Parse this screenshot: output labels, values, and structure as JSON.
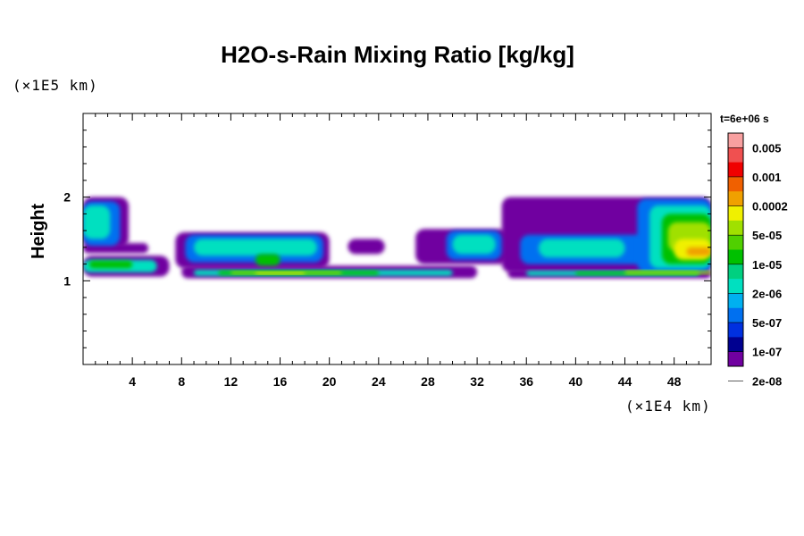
{
  "chart_data": {
    "type": "heatmap",
    "title": "H2O-s-Rain Mixing Ratio [kg/kg]",
    "ylabel": "Height",
    "y_unit": "(×1E5 km)",
    "x_unit": "(×1E4 km)",
    "time_label": "t=6e+06 s",
    "xlim": [
      0,
      51
    ],
    "ylim": [
      0,
      3
    ],
    "x_ticks": [
      "4",
      "8",
      "12",
      "16",
      "20",
      "24",
      "28",
      "32",
      "36",
      "40",
      "44",
      "48"
    ],
    "x_tick_values": [
      4,
      8,
      12,
      16,
      20,
      24,
      28,
      32,
      36,
      40,
      44,
      48
    ],
    "y_ticks": [
      "1",
      "2"
    ],
    "y_tick_values": [
      1,
      2
    ],
    "colorbar": {
      "labels": [
        "0.005",
        "0.001",
        "0.0002",
        "5e-05",
        "1e-05",
        "2e-06",
        "5e-07",
        "1e-07",
        "2e-08"
      ],
      "colors_top_to_bottom": [
        "#f8a0a0",
        "#f05050",
        "#f00000",
        "#f06000",
        "#f0a000",
        "#f0f000",
        "#a0e000",
        "#50d000",
        "#00c000",
        "#00d080",
        "#00e0c0",
        "#00b0f0",
        "#0070f0",
        "#0030e0",
        "#000090",
        "#7000a0"
      ]
    },
    "fields": [
      {
        "level": 0,
        "color": "#7000a0",
        "x": [
          0,
          3.7
        ],
        "y": [
          1.4,
          2.0
        ]
      },
      {
        "level": 0,
        "color": "#7000a0",
        "x": [
          0,
          5.3
        ],
        "y": [
          1.33,
          1.45
        ]
      },
      {
        "level": 0,
        "color": "#7000a0",
        "x": [
          0,
          7
        ],
        "y": [
          1.05,
          1.3
        ]
      },
      {
        "level": 0,
        "color": "#7000a0",
        "x": [
          7.5,
          20
        ],
        "y": [
          1.15,
          1.58
        ]
      },
      {
        "level": 0,
        "color": "#7000a0",
        "x": [
          21.5,
          24.5
        ],
        "y": [
          1.32,
          1.5
        ]
      },
      {
        "level": 0,
        "color": "#7000a0",
        "x": [
          27,
          34.5
        ],
        "y": [
          1.2,
          1.62
        ]
      },
      {
        "level": 0,
        "color": "#7000a0",
        "x": [
          34,
          51
        ],
        "y": [
          1.1,
          2.0
        ]
      },
      {
        "level": 0,
        "color": "#7000a0",
        "x": [
          8,
          32
        ],
        "y": [
          1.03,
          1.18
        ]
      },
      {
        "level": 0,
        "color": "#7000a0",
        "x": [
          34.5,
          51
        ],
        "y": [
          1.03,
          1.14
        ]
      },
      {
        "level": 2,
        "color": "#0070f0",
        "x": [
          0,
          3
        ],
        "y": [
          1.42,
          1.95
        ]
      },
      {
        "level": 2,
        "color": "#0070f0",
        "x": [
          8.3,
          19.5
        ],
        "y": [
          1.22,
          1.55
        ]
      },
      {
        "level": 2,
        "color": "#0070f0",
        "x": [
          29.5,
          34
        ],
        "y": [
          1.25,
          1.6
        ]
      },
      {
        "level": 2,
        "color": "#0070f0",
        "x": [
          35.5,
          47
        ],
        "y": [
          1.2,
          1.55
        ]
      },
      {
        "level": 2,
        "color": "#0070f0",
        "x": [
          45,
          51
        ],
        "y": [
          1.1,
          1.98
        ]
      },
      {
        "level": 4,
        "color": "#00e0c0",
        "x": [
          0,
          2.2
        ],
        "y": [
          1.5,
          1.9
        ]
      },
      {
        "level": 4,
        "color": "#00e0c0",
        "x": [
          9,
          19
        ],
        "y": [
          1.3,
          1.5
        ]
      },
      {
        "level": 4,
        "color": "#00e0c0",
        "x": [
          30,
          33.5
        ],
        "y": [
          1.32,
          1.55
        ]
      },
      {
        "level": 4,
        "color": "#00e0c0",
        "x": [
          37,
          44
        ],
        "y": [
          1.28,
          1.5
        ]
      },
      {
        "level": 4,
        "color": "#00e0c0",
        "x": [
          46,
          51
        ],
        "y": [
          1.15,
          1.9
        ]
      },
      {
        "level": 4,
        "color": "#00e0c0",
        "x": [
          0,
          6
        ],
        "y": [
          1.1,
          1.25
        ]
      },
      {
        "level": 4,
        "color": "#00e0c0",
        "x": [
          9,
          30
        ],
        "y": [
          1.06,
          1.13
        ]
      },
      {
        "level": 4,
        "color": "#00e0c0",
        "x": [
          36,
          50
        ],
        "y": [
          1.06,
          1.12
        ]
      },
      {
        "level": 5,
        "color": "#00c000",
        "x": [
          0.5,
          4
        ],
        "y": [
          1.15,
          1.24
        ]
      },
      {
        "level": 5,
        "color": "#00c000",
        "x": [
          14,
          16
        ],
        "y": [
          1.18,
          1.32
        ]
      },
      {
        "level": 5,
        "color": "#00c000",
        "x": [
          11,
          24
        ],
        "y": [
          1.07,
          1.12
        ]
      },
      {
        "level": 5,
        "color": "#00c000",
        "x": [
          40,
          50
        ],
        "y": [
          1.07,
          1.11
        ]
      },
      {
        "level": 5,
        "color": "#00c000",
        "x": [
          47,
          51
        ],
        "y": [
          1.2,
          1.8
        ]
      },
      {
        "level": 6,
        "color": "#a0e000",
        "x": [
          12,
          21
        ],
        "y": [
          1.08,
          1.11
        ]
      },
      {
        "level": 6,
        "color": "#a0e000",
        "x": [
          47.5,
          51
        ],
        "y": [
          1.35,
          1.7
        ]
      },
      {
        "level": 6,
        "color": "#a0e000",
        "x": [
          44,
          51
        ],
        "y": [
          1.08,
          1.12
        ]
      },
      {
        "level": 7,
        "color": "#f0f000",
        "x": [
          14,
          18
        ],
        "y": [
          1.08,
          1.105
        ]
      },
      {
        "level": 7,
        "color": "#f0f000",
        "x": [
          48,
          51
        ],
        "y": [
          1.25,
          1.5
        ]
      },
      {
        "level": 8,
        "color": "#f0a000",
        "x": [
          49,
          51
        ],
        "y": [
          1.3,
          1.4
        ]
      }
    ]
  }
}
